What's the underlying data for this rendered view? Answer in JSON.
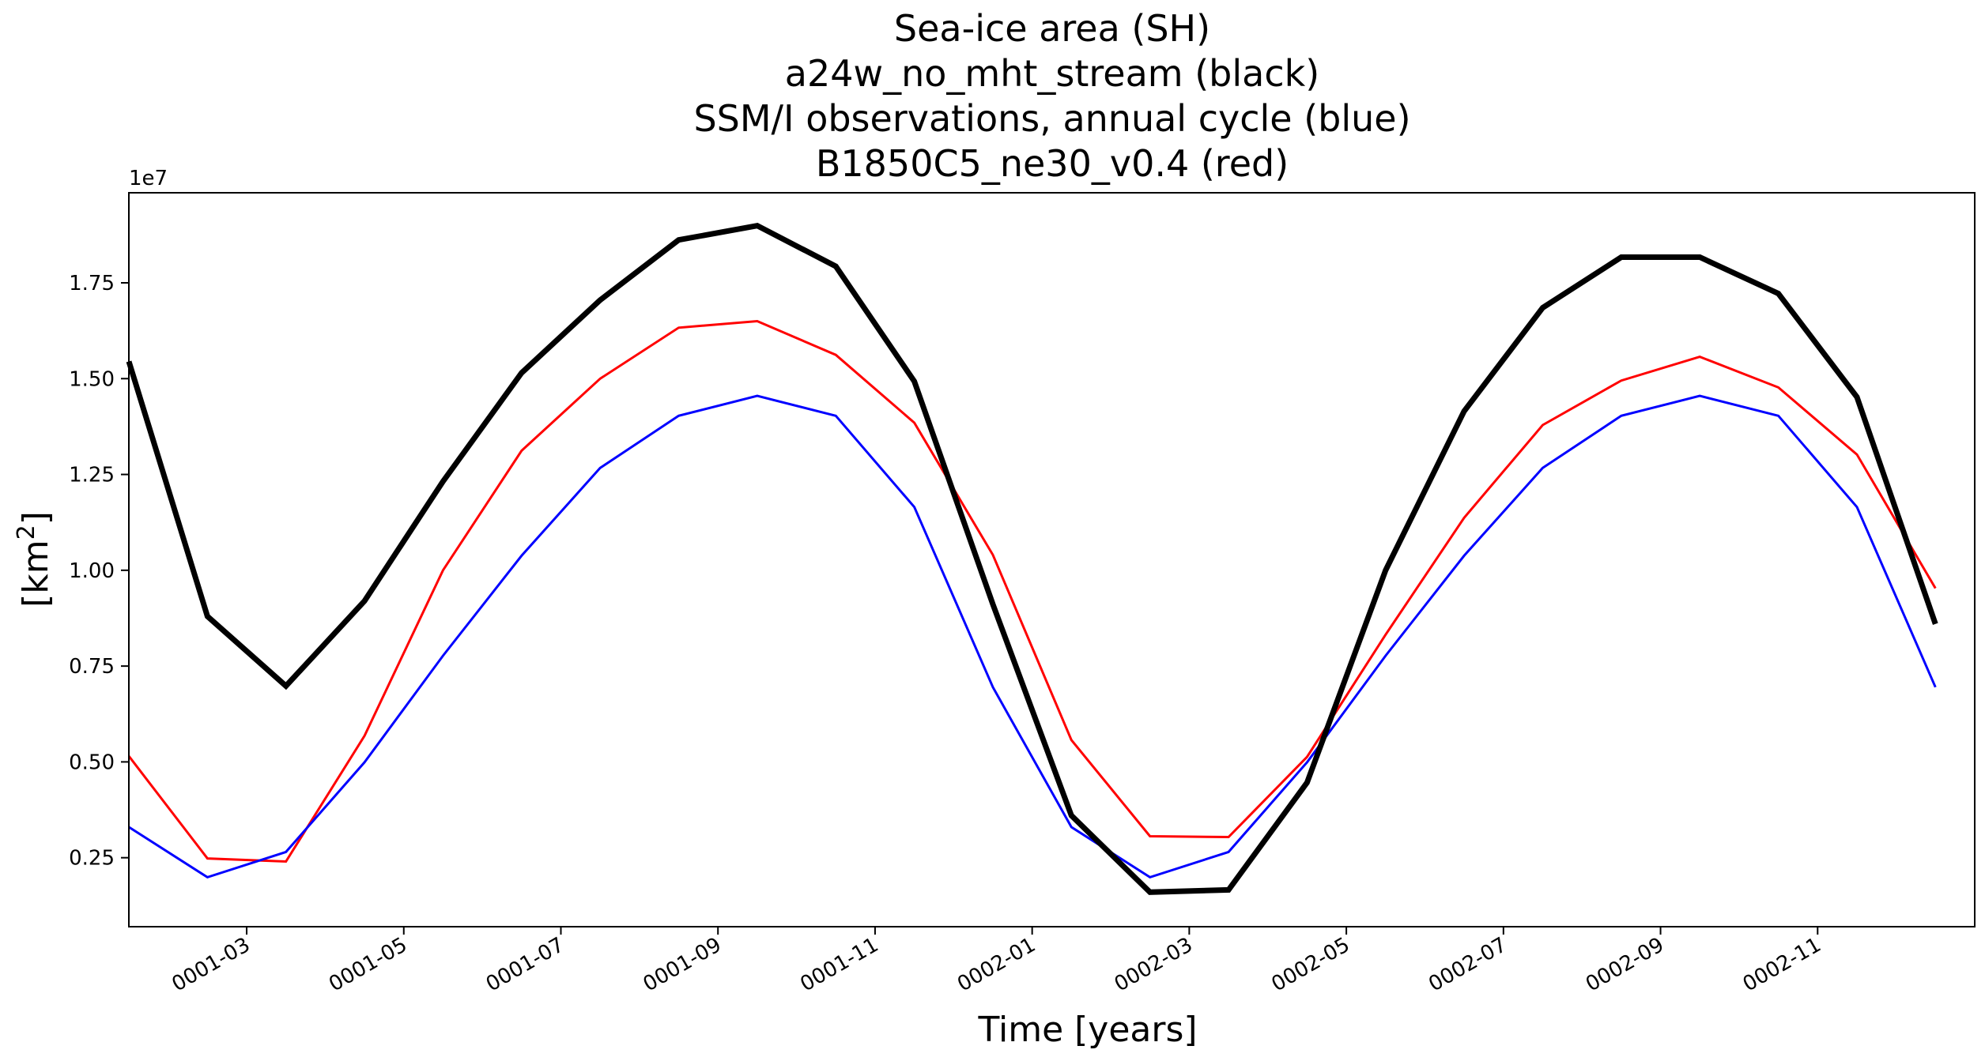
{
  "chart_data": {
    "type": "line",
    "title_lines": [
      "Sea-ice area (SH)",
      "a24w_no_mht_stream (black)",
      "SSM/I observations, annual cycle (blue)",
      "B1850C5_ne30_v0.4 (red)"
    ],
    "xlabel": "Time [years]",
    "ylabel_base": "[km",
    "ylabel_sup": "2",
    "ylabel_close": "]",
    "y_offset_label": "1e7",
    "xlim": [
      0,
      23.5
    ],
    "ylim": [
      0.07,
      1.985
    ],
    "x_month_index": [
      0,
      1,
      2,
      3,
      4,
      5,
      6,
      7,
      8,
      9,
      10,
      11,
      12,
      13,
      14,
      15,
      16,
      17,
      18,
      19,
      20,
      21,
      22,
      23
    ],
    "x_ticks": [
      {
        "label": "0001-03",
        "value": 1.5
      },
      {
        "label": "0001-05",
        "value": 3.5
      },
      {
        "label": "0001-07",
        "value": 5.5
      },
      {
        "label": "0001-09",
        "value": 7.5
      },
      {
        "label": "0001-11",
        "value": 9.5
      },
      {
        "label": "0002-01",
        "value": 11.5
      },
      {
        "label": "0002-03",
        "value": 13.5
      },
      {
        "label": "0002-05",
        "value": 15.5
      },
      {
        "label": "0002-07",
        "value": 17.5
      },
      {
        "label": "0002-09",
        "value": 19.5
      },
      {
        "label": "0002-11",
        "value": 21.5
      }
    ],
    "y_ticks": [
      {
        "label": "0.25",
        "value": 0.25
      },
      {
        "label": "0.50",
        "value": 0.5
      },
      {
        "label": "0.75",
        "value": 0.75
      },
      {
        "label": "1.00",
        "value": 1.0
      },
      {
        "label": "1.25",
        "value": 1.25
      },
      {
        "label": "1.50",
        "value": 1.5
      },
      {
        "label": "1.75",
        "value": 1.75
      }
    ],
    "series": [
      {
        "name": "a24w_no_mht_stream",
        "color": "#000000",
        "width": "thick",
        "values": [
          1.545,
          0.88,
          0.698,
          0.92,
          1.232,
          1.515,
          1.705,
          1.862,
          1.899,
          1.793,
          1.493,
          0.911,
          0.36,
          0.16,
          0.166,
          0.446,
          1.0,
          1.415,
          1.685,
          1.817,
          1.817,
          1.722,
          1.452,
          0.86
        ]
      },
      {
        "name": "SSM/I observations",
        "color": "#0000ff",
        "width": "thin",
        "values": [
          0.33,
          0.199,
          0.265,
          0.499,
          0.777,
          1.038,
          1.267,
          1.403,
          1.455,
          1.403,
          1.165,
          0.695,
          0.33,
          0.199,
          0.265,
          0.499,
          0.777,
          1.038,
          1.267,
          1.403,
          1.455,
          1.403,
          1.165,
          0.695
        ]
      },
      {
        "name": "B1850C5_ne30_v0.4",
        "color": "#ff0000",
        "width": "thin",
        "values": [
          0.515,
          0.248,
          0.24,
          0.568,
          1.0,
          1.312,
          1.5,
          1.633,
          1.65,
          1.562,
          1.385,
          1.04,
          0.557,
          0.306,
          0.304,
          0.513,
          0.832,
          1.137,
          1.379,
          1.495,
          1.557,
          1.477,
          1.302,
          0.953
        ]
      }
    ]
  }
}
